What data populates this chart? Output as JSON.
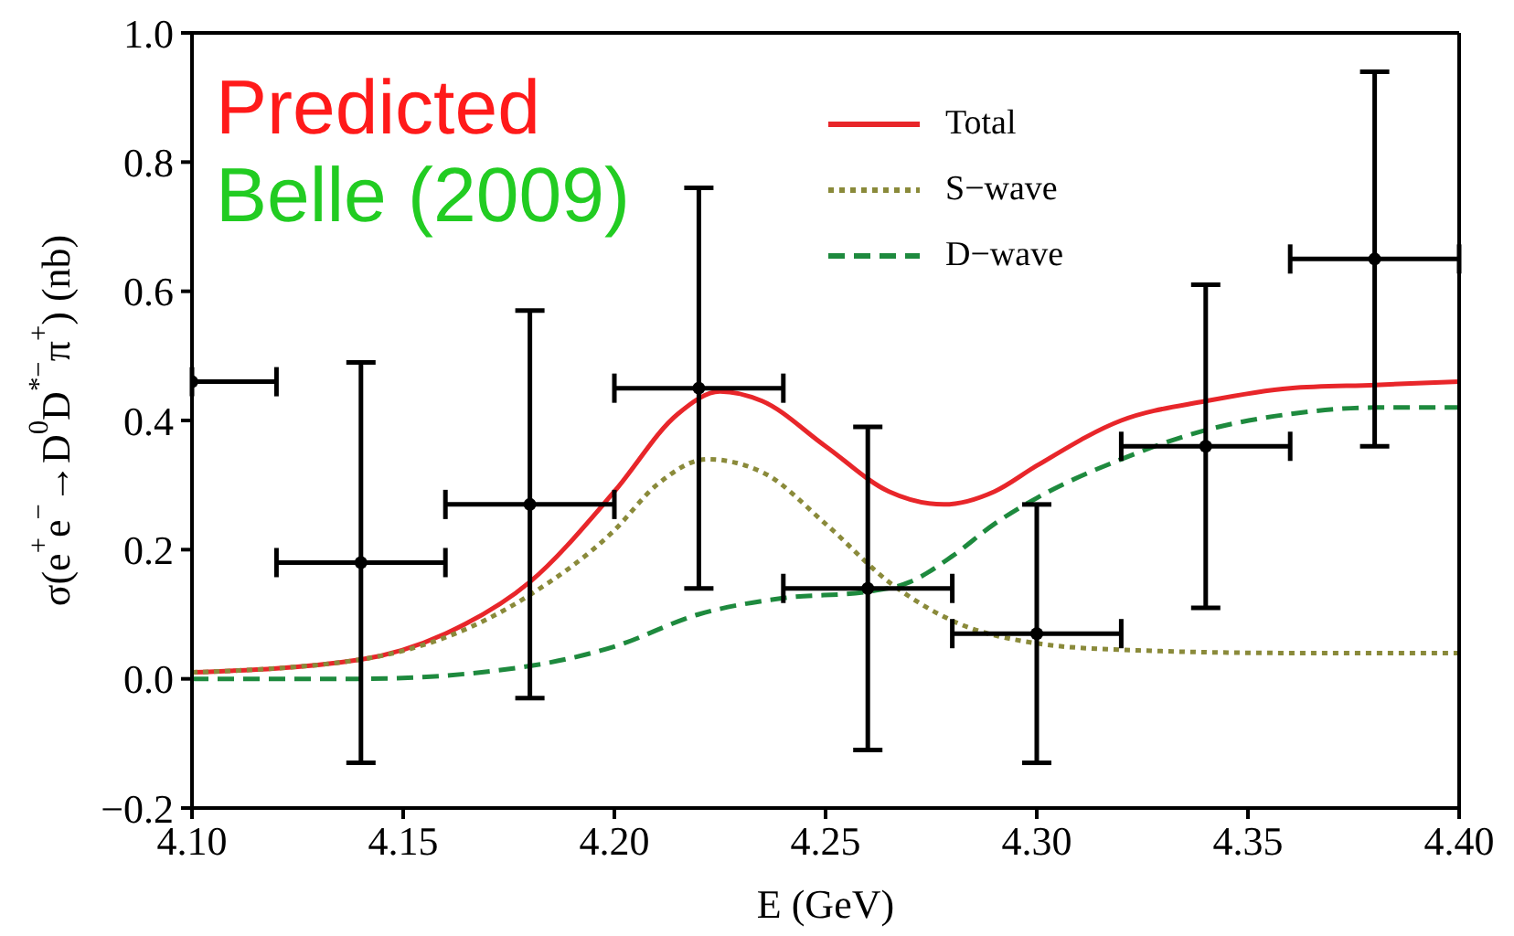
{
  "chart_data": {
    "type": "line",
    "xlabel": "E (GeV)",
    "ylabel": "σ(e$^{+}$e$^{−}$→D$^{0}$D$^{*−}$π$^{+}$) (nb)",
    "annotations": [
      "Predicted",
      "Belle (2009)"
    ],
    "xlim": [
      4.1,
      4.4
    ],
    "xticks": [
      {
        "value": 4.1,
        "label": "4.10"
      },
      {
        "value": 4.15,
        "label": "4.15"
      },
      {
        "value": 4.2,
        "label": "4.20"
      },
      {
        "value": 4.25,
        "label": "4.25"
      },
      {
        "value": 4.3,
        "label": "4.30"
      },
      {
        "value": 4.35,
        "label": "4.35"
      },
      {
        "value": 4.4,
        "label": "4.40"
      }
    ],
    "ylim": [
      -0.2,
      1.0
    ],
    "yticks": [
      {
        "value": -0.2,
        "label": "−0.2"
      },
      {
        "value": 0,
        "label": "0.0"
      },
      {
        "value": 0.2,
        "label": "0.2"
      },
      {
        "value": 0.4,
        "label": "0.4"
      },
      {
        "value": 0.6,
        "label": "0.6"
      },
      {
        "value": 0.8,
        "label": "0.8"
      },
      {
        "value": 1.0,
        "label": "1.0"
      }
    ],
    "legend": "top right",
    "series": [
      {
        "name": "Total",
        "color": "#e8262a",
        "line_style": "solid",
        "x": [
          4.1,
          4.14,
          4.16,
          4.18,
          4.2,
          4.215,
          4.225,
          4.235,
          4.25,
          4.265,
          4.278,
          4.29,
          4.3,
          4.32,
          4.34,
          4.36,
          4.38,
          4.4
        ],
        "values": [
          0.01,
          0.03,
          0.07,
          0.15,
          0.29,
          0.41,
          0.445,
          0.43,
          0.36,
          0.29,
          0.27,
          0.29,
          0.33,
          0.4,
          0.43,
          0.45,
          0.455,
          0.46
        ]
      },
      {
        "name": "S−wave",
        "color": "#8a8a3a",
        "line_style": "dotted",
        "x": [
          4.1,
          4.14,
          4.18,
          4.2,
          4.21,
          4.222,
          4.235,
          4.25,
          4.265,
          4.28,
          4.3,
          4.32,
          4.36,
          4.4
        ],
        "values": [
          0.01,
          0.03,
          0.13,
          0.23,
          0.3,
          0.34,
          0.32,
          0.24,
          0.15,
          0.09,
          0.055,
          0.045,
          0.04,
          0.04
        ]
      },
      {
        "name": "D−wave",
        "color": "#1e8a3e",
        "line_style": "dashed",
        "x": [
          4.1,
          4.14,
          4.18,
          4.2,
          4.22,
          4.24,
          4.26,
          4.27,
          4.28,
          4.29,
          4.3,
          4.32,
          4.34,
          4.36,
          4.38,
          4.4
        ],
        "values": [
          0.0,
          0.0,
          0.02,
          0.05,
          0.1,
          0.125,
          0.135,
          0.15,
          0.19,
          0.24,
          0.28,
          0.34,
          0.385,
          0.41,
          0.42,
          0.42
        ]
      },
      {
        "type": "scatter",
        "color": "#000000",
        "x": [
          4.1,
          4.14,
          4.18,
          4.22,
          4.26,
          4.3,
          4.34,
          4.38
        ],
        "values": [
          0.46,
          0.18,
          0.27,
          0.45,
          0.14,
          0.07,
          0.36,
          0.65
        ],
        "errors": [
          null,
          0.31,
          0.3,
          0.31,
          0.25,
          0.2,
          0.25,
          0.29
        ],
        "xerrors": [
          [
            4.1,
            4.12
          ],
          0.02,
          0.02,
          0.02,
          0.02,
          0.02,
          0.02,
          0.02
        ]
      }
    ]
  }
}
